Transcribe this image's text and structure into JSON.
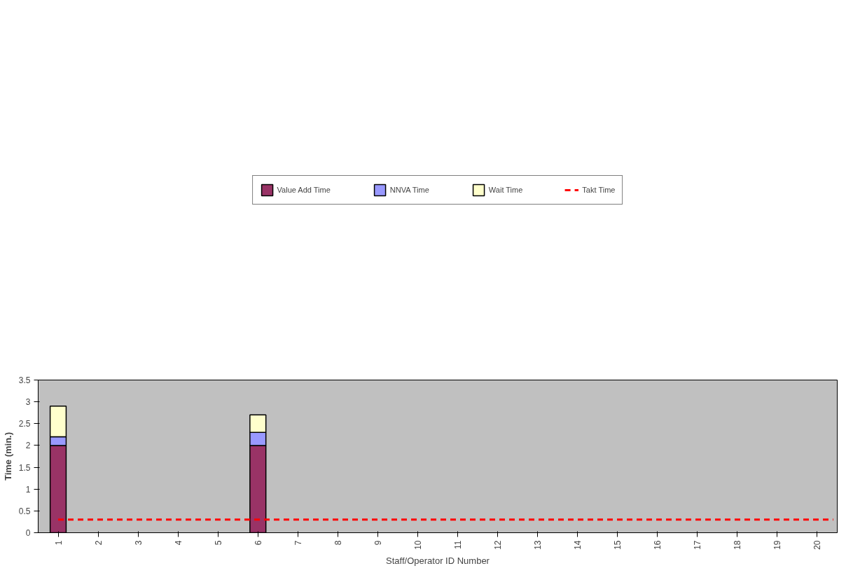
{
  "chart_data": {
    "type": "bar",
    "stacked": true,
    "xlabel": "Staff/Operator ID Number",
    "ylabel": "Time (min.)",
    "categories": [
      "1",
      "2",
      "3",
      "4",
      "5",
      "6",
      "7",
      "8",
      "9",
      "10",
      "11",
      "12",
      "13",
      "14",
      "15",
      "16",
      "17",
      "18",
      "19",
      "20"
    ],
    "series": [
      {
        "name": "Value Add Time",
        "color": "#993366",
        "values": [
          2.0,
          null,
          null,
          null,
          null,
          2.0,
          null,
          null,
          null,
          null,
          null,
          null,
          null,
          null,
          null,
          null,
          null,
          null,
          null,
          null
        ]
      },
      {
        "name": "NNVA Time",
        "color": "#9999ff",
        "values": [
          0.2,
          null,
          null,
          null,
          null,
          0.3,
          null,
          null,
          null,
          null,
          null,
          null,
          null,
          null,
          null,
          null,
          null,
          null,
          null,
          null
        ]
      },
      {
        "name": "Wait Time",
        "color": "#ffffcc",
        "values": [
          0.7,
          null,
          null,
          null,
          null,
          0.4,
          null,
          null,
          null,
          null,
          null,
          null,
          null,
          null,
          null,
          null,
          null,
          null,
          null,
          null
        ]
      }
    ],
    "ref_lines": [
      {
        "axis": "y",
        "value": 0.3,
        "label": "Takt Time",
        "color": "#ff0000",
        "line_style": "dashed"
      }
    ],
    "ylim": [
      0,
      3.5
    ],
    "yticks": [
      0,
      0.5,
      1,
      1.5,
      2,
      2.5,
      3,
      3.5
    ],
    "grid": false,
    "legend": "top"
  }
}
